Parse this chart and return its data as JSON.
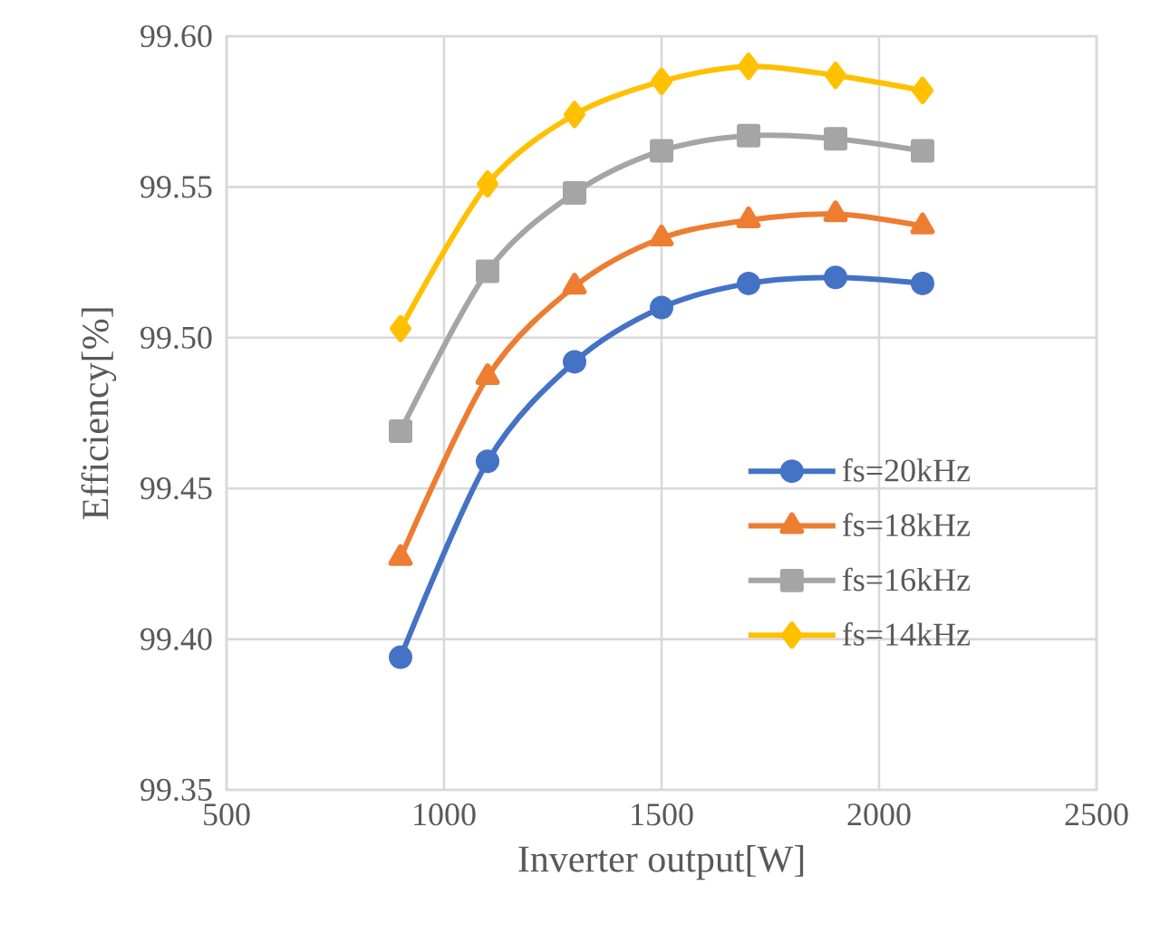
{
  "chart_data": {
    "type": "line",
    "xlabel": "Inverter output[W]",
    "ylabel": "Efficiency[%]",
    "x": [
      900,
      1100,
      1300,
      1500,
      1700,
      1900,
      2100
    ],
    "series": [
      {
        "name": "fs=20kHz",
        "color": "#4472c4",
        "marker": "circle",
        "values": [
          99.394,
          99.459,
          99.492,
          99.51,
          99.518,
          99.52,
          99.518
        ]
      },
      {
        "name": "fs=18kHz",
        "color": "#ed7d31",
        "marker": "triangle",
        "values": [
          99.427,
          99.487,
          99.517,
          99.533,
          99.539,
          99.541,
          99.537
        ]
      },
      {
        "name": "fs=16kHz",
        "color": "#a5a5a5",
        "marker": "square",
        "values": [
          99.469,
          99.522,
          99.548,
          99.562,
          99.567,
          99.566,
          99.562
        ]
      },
      {
        "name": "fs=14kHz",
        "color": "#ffc000",
        "marker": "diamond",
        "values": [
          99.503,
          99.551,
          99.574,
          99.585,
          99.59,
          99.587,
          99.582
        ]
      }
    ],
    "xlim": [
      500,
      2500
    ],
    "xticks": [
      500,
      1000,
      1500,
      2000,
      2500
    ],
    "ylim": [
      99.35,
      99.6
    ],
    "yticks": [
      {
        "value": 99.35,
        "label": "99.35"
      },
      {
        "value": 99.4,
        "label": "99.40"
      },
      {
        "value": 99.45,
        "label": "99.45"
      },
      {
        "value": 99.5,
        "label": "99.50"
      },
      {
        "value": 99.55,
        "label": "99.55"
      },
      {
        "value": 99.6,
        "label": "99.60"
      }
    ],
    "grid": true,
    "legend": "right",
    "line_style": "solid"
  }
}
